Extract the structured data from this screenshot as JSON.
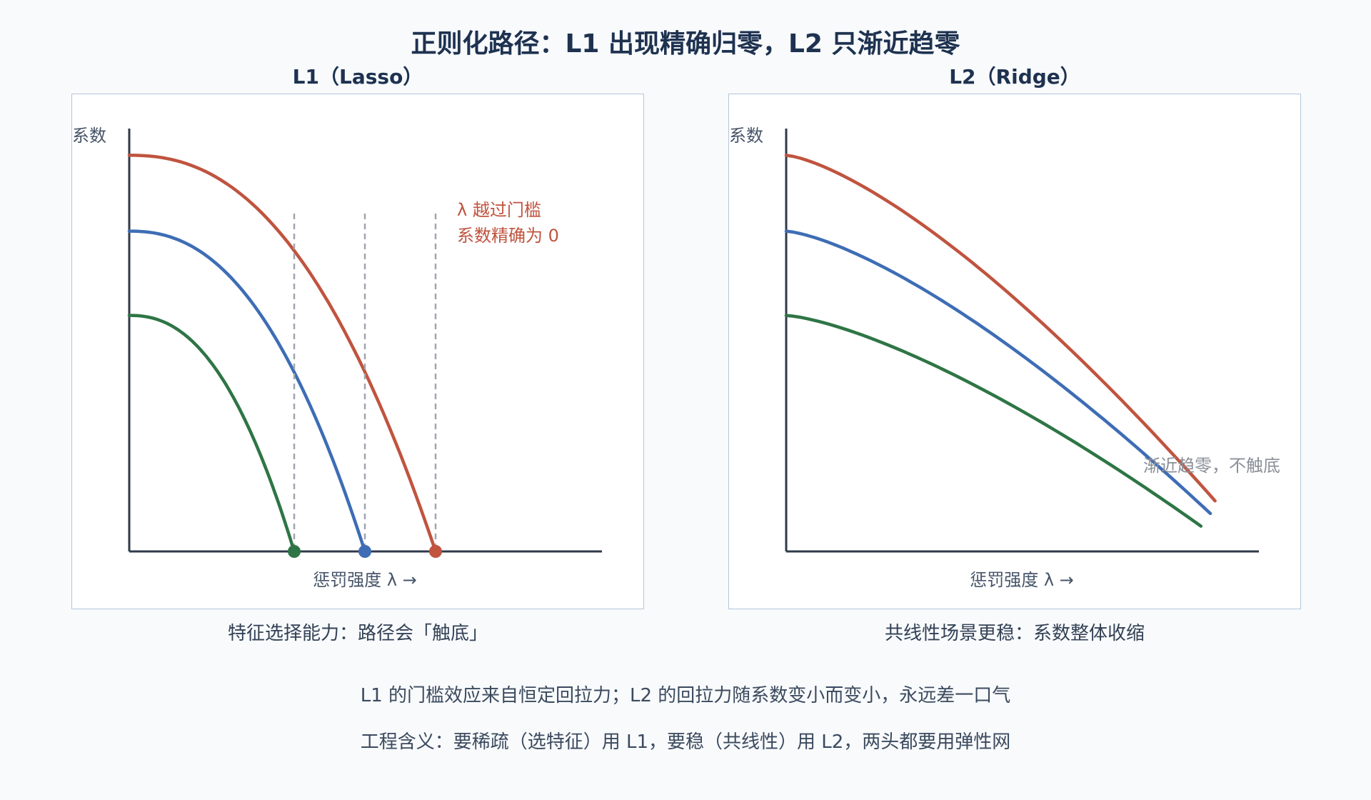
{
  "main_title": "正则化路径：L1 出现精确归零，L2 只渐近趋零",
  "notes": [
    "L1 的门槛效应来自恒定回拉力；L2 的回拉力随系数变小而变小，永远差一口气",
    "工程含义：要稀疏（选特征）用 L1，要稳（共线性）用 L2，两头都要用弹性网"
  ],
  "colors": {
    "red": "#c0543f",
    "blue": "#3e6db5",
    "green": "#2e7545",
    "axis": "#2f3a4a",
    "dash": "#a0a6b0",
    "grey_text": "#8a8f98"
  },
  "chart_data": [
    {
      "type": "line",
      "title": "L1（Lasso）",
      "ylabel": "系数",
      "xlabel": "惩罚强度 λ →",
      "caption": "特征选择能力：路径会「触底」",
      "annotation": [
        "λ 越过门槛",
        "系数精确为 0"
      ],
      "xlim": [
        0,
        1
      ],
      "ylim": [
        0,
        1
      ],
      "grid": false,
      "series": [
        {
          "color": "red",
          "start": 0.94,
          "zero_at": 0.65
        },
        {
          "color": "blue",
          "start": 0.76,
          "zero_at": 0.5
        },
        {
          "color": "green",
          "start": 0.56,
          "zero_at": 0.35
        }
      ]
    },
    {
      "type": "line",
      "title": "L2（Ridge）",
      "ylabel": "系数",
      "xlabel": "惩罚强度 λ →",
      "caption": "共线性场景更稳：系数整体收缩",
      "annotation": [
        "渐近趋零，不触底"
      ],
      "xlim": [
        0,
        1
      ],
      "ylim": [
        0,
        1
      ],
      "grid": false,
      "series": [
        {
          "color": "red",
          "start": 0.94,
          "end_x": 0.91,
          "end": 0.12
        },
        {
          "color": "blue",
          "start": 0.76,
          "end_x": 0.9,
          "end": 0.09
        },
        {
          "color": "green",
          "start": 0.56,
          "end_x": 0.88,
          "end": 0.06
        }
      ]
    }
  ]
}
